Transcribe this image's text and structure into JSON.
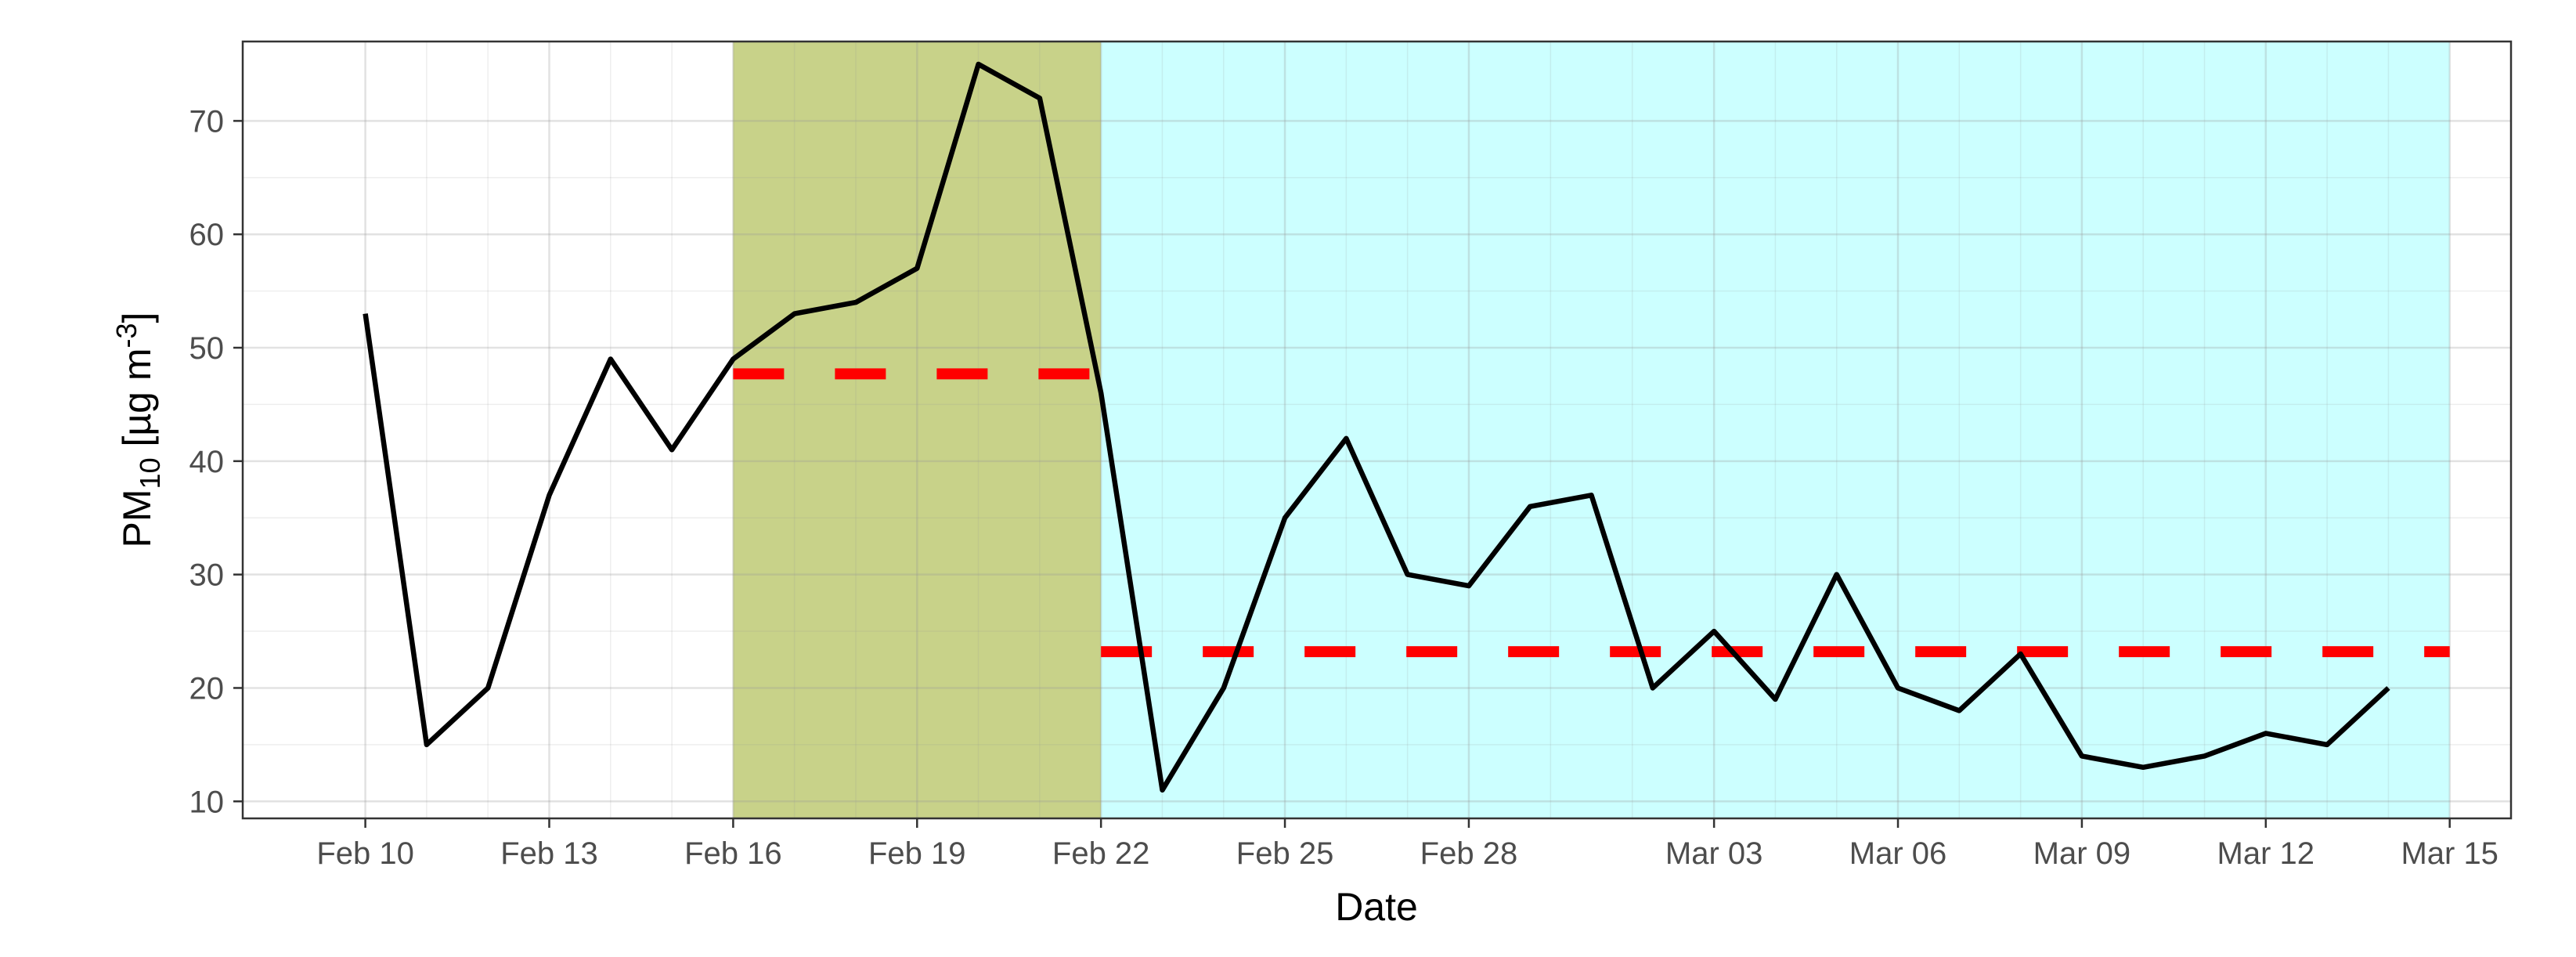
{
  "chart_data": {
    "type": "line",
    "xlabel": "Date",
    "ylabel": {
      "prefix": "PM",
      "subscript": "10",
      "unit_open": " [µg m",
      "superscript": "-3",
      "unit_close": "]"
    },
    "x_range": [
      "2020-02-08",
      "2020-03-16"
    ],
    "ylim": [
      8.5,
      77
    ],
    "y_ticks": [
      10,
      20,
      30,
      40,
      50,
      60,
      70
    ],
    "x_ticks": [
      {
        "date": "2020-02-10",
        "label": "Feb 10"
      },
      {
        "date": "2020-02-13",
        "label": "Feb 13"
      },
      {
        "date": "2020-02-16",
        "label": "Feb 16"
      },
      {
        "date": "2020-02-19",
        "label": "Feb 19"
      },
      {
        "date": "2020-02-22",
        "label": "Feb 22"
      },
      {
        "date": "2020-02-25",
        "label": "Feb 25"
      },
      {
        "date": "2020-02-28",
        "label": "Feb 28"
      },
      {
        "date": "2020-03-03",
        "label": "Mar 03"
      },
      {
        "date": "2020-03-06",
        "label": "Mar 06"
      },
      {
        "date": "2020-03-09",
        "label": "Mar 09"
      },
      {
        "date": "2020-03-12",
        "label": "Mar 12"
      },
      {
        "date": "2020-03-15",
        "label": "Mar 15"
      }
    ],
    "grid": true,
    "shaded_periods": [
      {
        "start": "2020-02-16",
        "end": "2020-02-22",
        "color": "#a4b43a",
        "opacity": 0.6
      },
      {
        "start": "2020-02-22",
        "end": "2020-03-15",
        "color": "#00ffff",
        "opacity": 0.2
      }
    ],
    "mean_lines": [
      {
        "start": "2020-02-16",
        "end": "2020-02-22",
        "value": 47.7,
        "color": "#ff0000"
      },
      {
        "start": "2020-02-22",
        "end": "2020-03-15",
        "value": 23.2,
        "color": "#ff0000"
      }
    ],
    "series": [
      {
        "color": "#000000",
        "points": [
          {
            "x": "2020-02-10",
            "y": 53
          },
          {
            "x": "2020-02-11",
            "y": 15
          },
          {
            "x": "2020-02-12",
            "y": 20
          },
          {
            "x": "2020-02-13",
            "y": 37
          },
          {
            "x": "2020-02-14",
            "y": 49
          },
          {
            "x": "2020-02-15",
            "y": 41
          },
          {
            "x": "2020-02-16",
            "y": 49
          },
          {
            "x": "2020-02-17",
            "y": 53
          },
          {
            "x": "2020-02-18",
            "y": 54
          },
          {
            "x": "2020-02-19",
            "y": 57
          },
          {
            "x": "2020-02-20",
            "y": 75
          },
          {
            "x": "2020-02-21",
            "y": 72
          },
          {
            "x": "2020-02-22",
            "y": 46
          },
          {
            "x": "2020-02-23",
            "y": 11
          },
          {
            "x": "2020-02-24",
            "y": 20
          },
          {
            "x": "2020-02-25",
            "y": 35
          },
          {
            "x": "2020-02-26",
            "y": 42
          },
          {
            "x": "2020-02-27",
            "y": 30
          },
          {
            "x": "2020-02-28",
            "y": 29
          },
          {
            "x": "2020-02-29",
            "y": 36
          },
          {
            "x": "2020-03-01",
            "y": 37
          },
          {
            "x": "2020-03-02",
            "y": 20
          },
          {
            "x": "2020-03-03",
            "y": 25
          },
          {
            "x": "2020-03-04",
            "y": 19
          },
          {
            "x": "2020-03-05",
            "y": 30
          },
          {
            "x": "2020-03-06",
            "y": 20
          },
          {
            "x": "2020-03-07",
            "y": 18
          },
          {
            "x": "2020-03-08",
            "y": 23
          },
          {
            "x": "2020-03-09",
            "y": 14
          },
          {
            "x": "2020-03-10",
            "y": 13
          },
          {
            "x": "2020-03-11",
            "y": 14
          },
          {
            "x": "2020-03-12",
            "y": 16
          },
          {
            "x": "2020-03-13",
            "y": 15
          },
          {
            "x": "2020-03-14",
            "y": 20
          }
        ]
      }
    ]
  }
}
